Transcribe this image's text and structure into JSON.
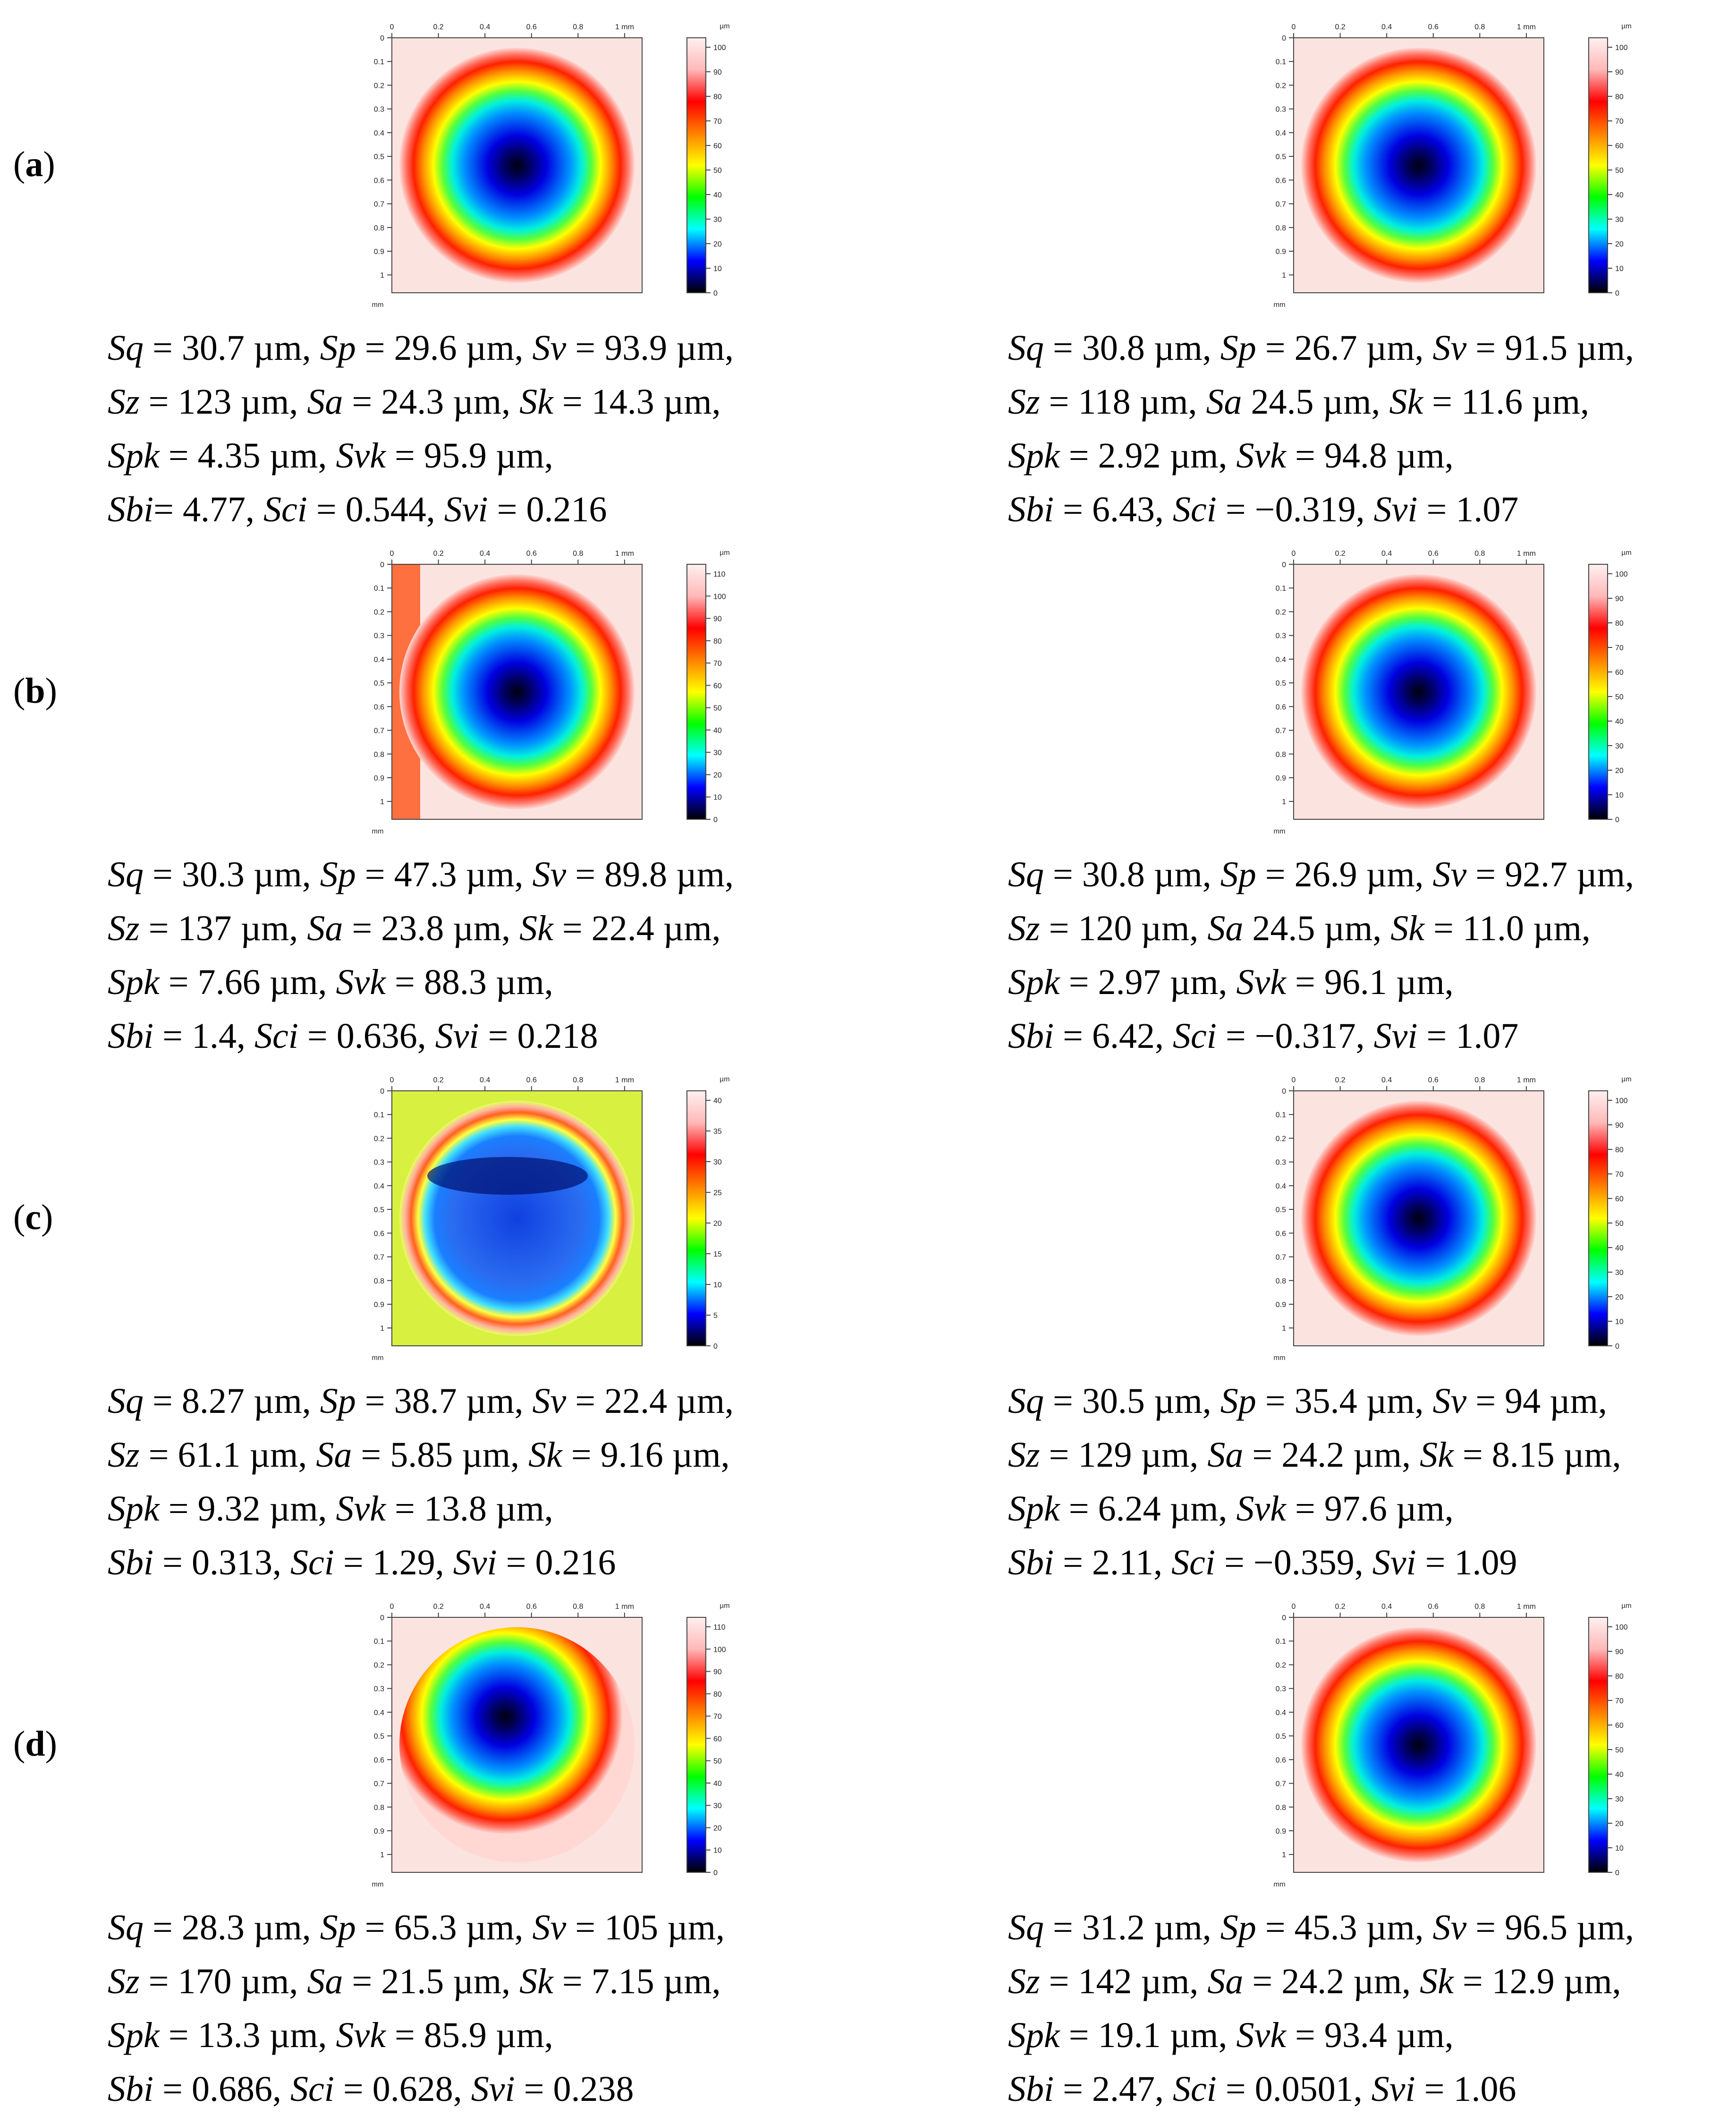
{
  "colorscale": [
    "#000000",
    "#0000ff",
    "#00ffff",
    "#00ff00",
    "#ffff00",
    "#ff8000",
    "#ff0000",
    "#ffb8b8",
    "#fff0f0"
  ],
  "axis": {
    "x_ticks": [
      "0",
      "0.2",
      "0.4",
      "0.6",
      "0.8",
      "1 mm"
    ],
    "y_ticks": [
      "0",
      "0.1",
      "0.2",
      "0.3",
      "0.4",
      "0.5",
      "0.6",
      "0.7",
      "0.8",
      "0.9",
      "1"
    ],
    "unit_mm": "mm",
    "unit_um": "µm"
  },
  "rows": [
    {
      "label": "a",
      "panels": [
        {
          "scale": [
            "100",
            "90",
            "80",
            "70",
            "60",
            "50",
            "40",
            "30",
            "20",
            "10",
            "0"
          ],
          "variant": "normal",
          "lines": [
            [
              [
                "Sq",
                " = 30.7 µm, "
              ],
              [
                "Sp",
                " = 29.6 µm, "
              ],
              [
                "Sv",
                " = 93.9 µm,"
              ]
            ],
            [
              [
                "Sz",
                " = 123 µm, "
              ],
              [
                "Sa",
                " = 24.3 µm, "
              ],
              [
                "Sk",
                " = 14.3 µm,"
              ]
            ],
            [
              [
                "Spk",
                " = 4.35 µm, "
              ],
              [
                "Svk",
                " = 95.9 µm,"
              ]
            ],
            [
              [
                "Sbi",
                "= 4.77, "
              ],
              [
                "Sci",
                " = 0.544, "
              ],
              [
                "Svi",
                " = 0.216"
              ]
            ]
          ]
        },
        {
          "scale": [
            "100",
            "90",
            "80",
            "70",
            "60",
            "50",
            "40",
            "30",
            "20",
            "10",
            "0"
          ],
          "variant": "normal",
          "lines": [
            [
              [
                "Sq",
                " = 30.8 µm, "
              ],
              [
                "Sp",
                " = 26.7 µm, "
              ],
              [
                "Sv",
                " = 91.5 µm,"
              ]
            ],
            [
              [
                "Sz",
                " = 118 µm, "
              ],
              [
                "Sa",
                " 24.5 µm, "
              ],
              [
                "Sk",
                " = 11.6 µm,"
              ]
            ],
            [
              [
                "Spk",
                " = 2.92 µm, "
              ],
              [
                "Svk",
                " = 94.8 µm,"
              ]
            ],
            [
              [
                "Sbi",
                " = 6.43, "
              ],
              [
                "Sci",
                " = −0.319, "
              ],
              [
                "Svi",
                " = 1.07"
              ]
            ]
          ]
        }
      ]
    },
    {
      "label": "b",
      "panels": [
        {
          "scale": [
            "110",
            "100",
            "90",
            "80",
            "70",
            "60",
            "50",
            "40",
            "30",
            "20",
            "10",
            "0"
          ],
          "variant": "edge",
          "lines": [
            [
              [
                "Sq",
                " = 30.3 µm, "
              ],
              [
                "Sp",
                " = 47.3 µm, "
              ],
              [
                "Sv",
                " = 89.8 µm,"
              ]
            ],
            [
              [
                "Sz",
                " = 137 µm, "
              ],
              [
                "Sa",
                " = 23.8 µm, "
              ],
              [
                "Sk",
                " = 22.4 µm,"
              ]
            ],
            [
              [
                "Spk",
                " = 7.66 µm, "
              ],
              [
                "Svk",
                " = 88.3 µm,"
              ]
            ],
            [
              [
                "Sbi",
                " = 1.4, "
              ],
              [
                "Sci",
                " = 0.636, "
              ],
              [
                "Svi",
                " = 0.218"
              ]
            ]
          ]
        },
        {
          "scale": [
            "100",
            "90",
            "80",
            "70",
            "60",
            "50",
            "40",
            "30",
            "20",
            "10",
            "0"
          ],
          "variant": "normal",
          "lines": [
            [
              [
                "Sq",
                " = 30.8 µm, "
              ],
              [
                "Sp",
                " = 26.9 µm, "
              ],
              [
                "Sv",
                " = 92.7 µm,"
              ]
            ],
            [
              [
                "Sz",
                " = 120 µm, "
              ],
              [
                "Sa",
                " 24.5 µm, "
              ],
              [
                "Sk",
                " = 11.0 µm,"
              ]
            ],
            [
              [
                "Spk",
                " = 2.97 µm, "
              ],
              [
                "Svk",
                " = 96.1 µm,"
              ]
            ],
            [
              [
                "Sbi",
                " = 6.42, "
              ],
              [
                "Sci",
                " = −0.317, "
              ],
              [
                "Svi",
                " = 1.07"
              ]
            ]
          ]
        }
      ]
    },
    {
      "label": "c",
      "panels": [
        {
          "scale": [
            "40",
            "35",
            "30",
            "25",
            "20",
            "15",
            "10",
            "5",
            "0"
          ],
          "variant": "worn",
          "lines": [
            [
              [
                "Sq",
                " = 8.27 µm, "
              ],
              [
                "Sp",
                " = 38.7 µm, "
              ],
              [
                "Sv",
                " = 22.4 µm,"
              ]
            ],
            [
              [
                "Sz",
                " = 61.1 µm, "
              ],
              [
                "Sa",
                " = 5.85 µm, "
              ],
              [
                "Sk",
                " = 9.16 µm,"
              ]
            ],
            [
              [
                "Spk",
                " = 9.32 µm, "
              ],
              [
                "Svk",
                " = 13.8 µm,"
              ]
            ],
            [
              [
                "Sbi",
                " = 0.313, "
              ],
              [
                "Sci",
                " = 1.29, "
              ],
              [
                "Svi",
                " = 0.216"
              ]
            ]
          ]
        },
        {
          "scale": [
            "100",
            "90",
            "80",
            "70",
            "60",
            "50",
            "40",
            "30",
            "20",
            "10",
            "0"
          ],
          "variant": "normal",
          "lines": [
            [
              [
                "Sq",
                " = 30.5 µm, "
              ],
              [
                "Sp",
                " = 35.4 µm, "
              ],
              [
                "Sv",
                " = 94 µm,"
              ]
            ],
            [
              [
                "Sz",
                " = 129 µm, "
              ],
              [
                "Sa",
                " = 24.2 µm, "
              ],
              [
                "Sk",
                " = 8.15 µm,"
              ]
            ],
            [
              [
                "Spk",
                " = 6.24 µm, "
              ],
              [
                "Svk",
                " = 97.6 µm,"
              ]
            ],
            [
              [
                "Sbi",
                " = 2.11, "
              ],
              [
                "Sci",
                " = −0.359, "
              ],
              [
                "Svi",
                " = 1.09"
              ]
            ]
          ]
        }
      ]
    },
    {
      "label": "d",
      "panels": [
        {
          "scale": [
            "110",
            "100",
            "90",
            "80",
            "70",
            "60",
            "50",
            "40",
            "30",
            "20",
            "10",
            "0"
          ],
          "variant": "upper",
          "lines": [
            [
              [
                "Sq",
                " = 28.3 µm, "
              ],
              [
                "Sp",
                " = 65.3 µm, "
              ],
              [
                "Sv",
                " = 105 µm,"
              ]
            ],
            [
              [
                "Sz",
                " = 170 µm, "
              ],
              [
                "Sa",
                " = 21.5 µm, "
              ],
              [
                "Sk",
                " = 7.15 µm,"
              ]
            ],
            [
              [
                "Spk",
                " = 13.3 µm, "
              ],
              [
                "Svk",
                " = 85.9 µm,"
              ]
            ],
            [
              [
                "Sbi",
                " = 0.686, "
              ],
              [
                "Sci",
                " = 0.628, "
              ],
              [
                "Svi",
                " = 0.238"
              ]
            ]
          ]
        },
        {
          "scale": [
            "100",
            "90",
            "80",
            "70",
            "60",
            "50",
            "40",
            "30",
            "20",
            "10",
            "0"
          ],
          "variant": "normal",
          "lines": [
            [
              [
                "Sq",
                " = 31.2 µm, "
              ],
              [
                "Sp",
                " = 45.3 µm, "
              ],
              [
                "Sv",
                " = 96.5 µm,"
              ]
            ],
            [
              [
                "Sz",
                " = 142 µm, "
              ],
              [
                "Sa",
                " = 24.2 µm, "
              ],
              [
                "Sk",
                " = 12.9 µm,"
              ]
            ],
            [
              [
                "Spk",
                " = 19.1 µm, "
              ],
              [
                "Svk",
                " = 93.4 µm,"
              ]
            ],
            [
              [
                "Sbi",
                " = 2.47, "
              ],
              [
                "Sci",
                " = 0.0501, "
              ],
              [
                "Svi",
                " = 1.06"
              ]
            ]
          ]
        }
      ]
    }
  ]
}
